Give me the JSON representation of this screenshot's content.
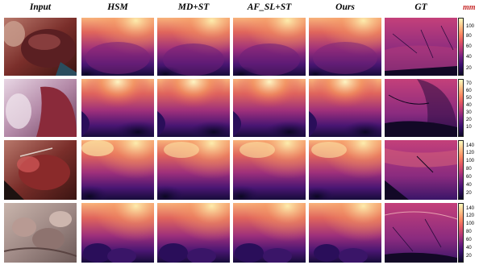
{
  "headers": {
    "input": "Input",
    "hsm": "HSM",
    "md_st": "MD+ST",
    "af_sl_st": "AF_SL+ST",
    "ours": "Ours",
    "gt": "GT"
  },
  "unit_label": "mm",
  "colormap": "magma",
  "rows": [
    {
      "ticks": [
        "100",
        "80",
        "60",
        "40",
        "20"
      ]
    },
    {
      "ticks": [
        "70",
        "60",
        "50",
        "40",
        "30",
        "20",
        "10"
      ]
    },
    {
      "ticks": [
        "140",
        "120",
        "100",
        "80",
        "60",
        "40",
        "20"
      ]
    },
    {
      "ticks": [
        "140",
        "120",
        "100",
        "80",
        "60",
        "40",
        "20"
      ]
    }
  ]
}
